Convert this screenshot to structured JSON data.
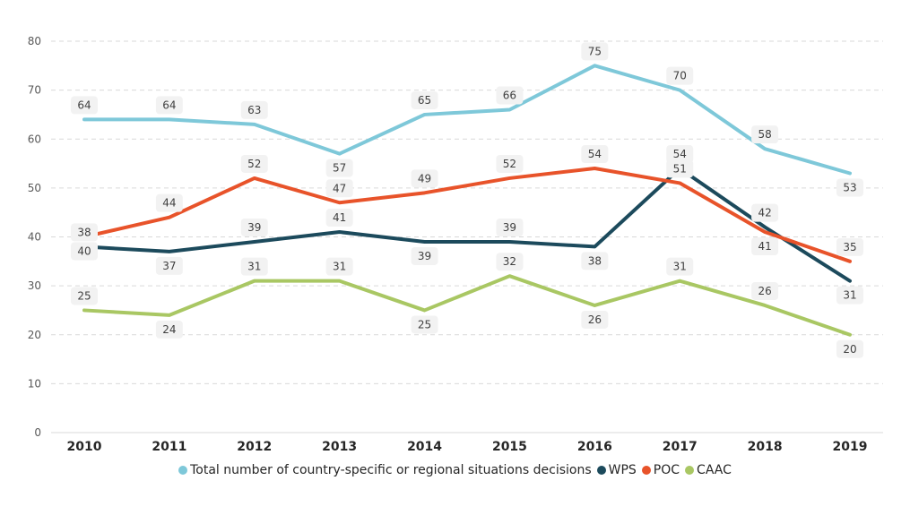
{
  "chart_data": {
    "type": "line",
    "title": "",
    "xlabel": "",
    "ylabel": "",
    "ylim": [
      0,
      80
    ],
    "yticks": [
      "0",
      "10",
      "20",
      "30",
      "40",
      "50",
      "60",
      "70",
      "80"
    ],
    "grid": true,
    "legend_position": "bottom",
    "categories": [
      "2010",
      "2011",
      "2012",
      "2013",
      "2014",
      "2015",
      "2016",
      "2017",
      "2018",
      "2019"
    ],
    "series": [
      {
        "name": "Total number of country-specific or regional situations decisions",
        "color": "#7ec8d9",
        "values": [
          64,
          64,
          63,
          57,
          65,
          66,
          75,
          70,
          58,
          53
        ],
        "label_pos": [
          "above",
          "above",
          "above",
          "below",
          "above",
          "above",
          "above",
          "above",
          "above",
          "below"
        ]
      },
      {
        "name": "WPS",
        "color": "#1c4a5c",
        "values": [
          38,
          37,
          39,
          41,
          39,
          39,
          38,
          54,
          42,
          31
        ],
        "label_pos": [
          "above",
          "below",
          "above",
          "above",
          "below",
          "above",
          "below",
          "above",
          "above",
          "below"
        ]
      },
      {
        "name": "POC",
        "color": "#e8532a",
        "values": [
          40,
          44,
          52,
          47,
          49,
          52,
          54,
          51,
          41,
          35
        ],
        "label_pos": [
          "below",
          "above",
          "above",
          "above",
          "above",
          "above",
          "above",
          "above",
          "below",
          "above"
        ]
      },
      {
        "name": "CAAC",
        "color": "#a9c763",
        "values": [
          25,
          24,
          31,
          31,
          25,
          32,
          26,
          31,
          26,
          20
        ],
        "label_pos": [
          "above",
          "below",
          "above",
          "above",
          "below",
          "above",
          "below",
          "above",
          "above",
          "below"
        ]
      }
    ]
  }
}
